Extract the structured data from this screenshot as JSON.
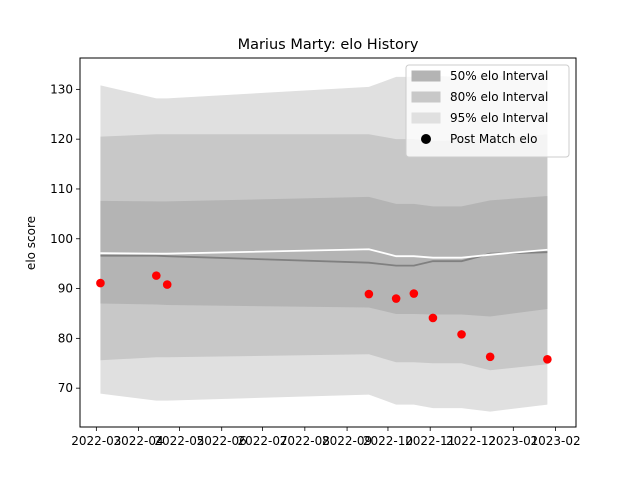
{
  "chart_data": {
    "type": "area",
    "title": "Marius Marty: elo History",
    "xlabel": "",
    "ylabel": "elo score",
    "x_ticks": [
      "2022-03",
      "2022-04",
      "2022-05",
      "2022-06",
      "2022-07",
      "2022-08",
      "2022-09",
      "2022-10",
      "2022-11",
      "2022-12",
      "2023-01",
      "2023-02"
    ],
    "y_ticks": [
      70,
      80,
      90,
      100,
      110,
      120,
      130
    ],
    "xlim": [
      "2022-02-17",
      "2023-02-16"
    ],
    "ylim": [
      62.2,
      136.3
    ],
    "grid": false,
    "legend_position": "top-right",
    "x": [
      "2022-03-04",
      "2022-04-14",
      "2022-04-22",
      "2022-09-17",
      "2022-10-07",
      "2022-10-20",
      "2022-11-03",
      "2022-11-24",
      "2022-12-15",
      "2023-01-26"
    ],
    "series": [
      {
        "name": "95% elo Interval",
        "kind": "band",
        "color": "#e0e0e0",
        "lower": [
          68.9,
          67.5,
          67.5,
          68.7,
          66.7,
          66.7,
          66.0,
          66.0,
          65.3,
          66.7
        ],
        "upper": [
          130.8,
          128.2,
          128.2,
          130.5,
          132.5,
          132.5,
          132.7,
          132.5,
          132.7,
          132.7
        ]
      },
      {
        "name": "80% elo Interval",
        "kind": "band",
        "color": "#c8c8c8",
        "lower": [
          75.6,
          76.2,
          76.2,
          76.8,
          75.2,
          75.2,
          75.0,
          75.0,
          73.6,
          74.8
        ],
        "upper": [
          120.5,
          121.0,
          121.0,
          121.0,
          120.0,
          120.0,
          119.6,
          119.8,
          120.0,
          121.0
        ]
      },
      {
        "name": "50% elo Interval",
        "kind": "band",
        "color": "#b4b4b4",
        "lower": [
          87.0,
          86.8,
          86.7,
          86.2,
          84.9,
          84.9,
          84.8,
          84.8,
          84.4,
          85.9
        ],
        "upper": [
          107.6,
          107.5,
          107.5,
          108.4,
          107.0,
          107.0,
          106.5,
          106.5,
          107.7,
          108.6
        ]
      },
      {
        "name": "",
        "kind": "line",
        "color": "#808080",
        "values": [
          96.6,
          96.6,
          96.5,
          95.2,
          94.6,
          94.6,
          95.5,
          95.5,
          97.0,
          97.3
        ]
      },
      {
        "name": "",
        "kind": "line",
        "color": "#ffffff",
        "values": [
          97.1,
          97.0,
          97.0,
          97.9,
          96.5,
          96.5,
          96.2,
          96.2,
          96.8,
          97.8
        ]
      },
      {
        "name": "Post Match elo",
        "kind": "scatter",
        "color": "#ff0000",
        "values": [
          91.1,
          92.6,
          90.8,
          88.9,
          88.0,
          89.0,
          84.1,
          80.8,
          76.3,
          75.8
        ]
      }
    ],
    "legend": [
      {
        "label": "50% elo Interval",
        "marker": "patch",
        "color": "#b4b4b4"
      },
      {
        "label": "80% elo Interval",
        "marker": "patch",
        "color": "#c8c8c8"
      },
      {
        "label": "95% elo Interval",
        "marker": "patch",
        "color": "#e0e0e0"
      },
      {
        "label": "Post Match elo",
        "marker": "dot",
        "color": "#000000"
      }
    ]
  }
}
